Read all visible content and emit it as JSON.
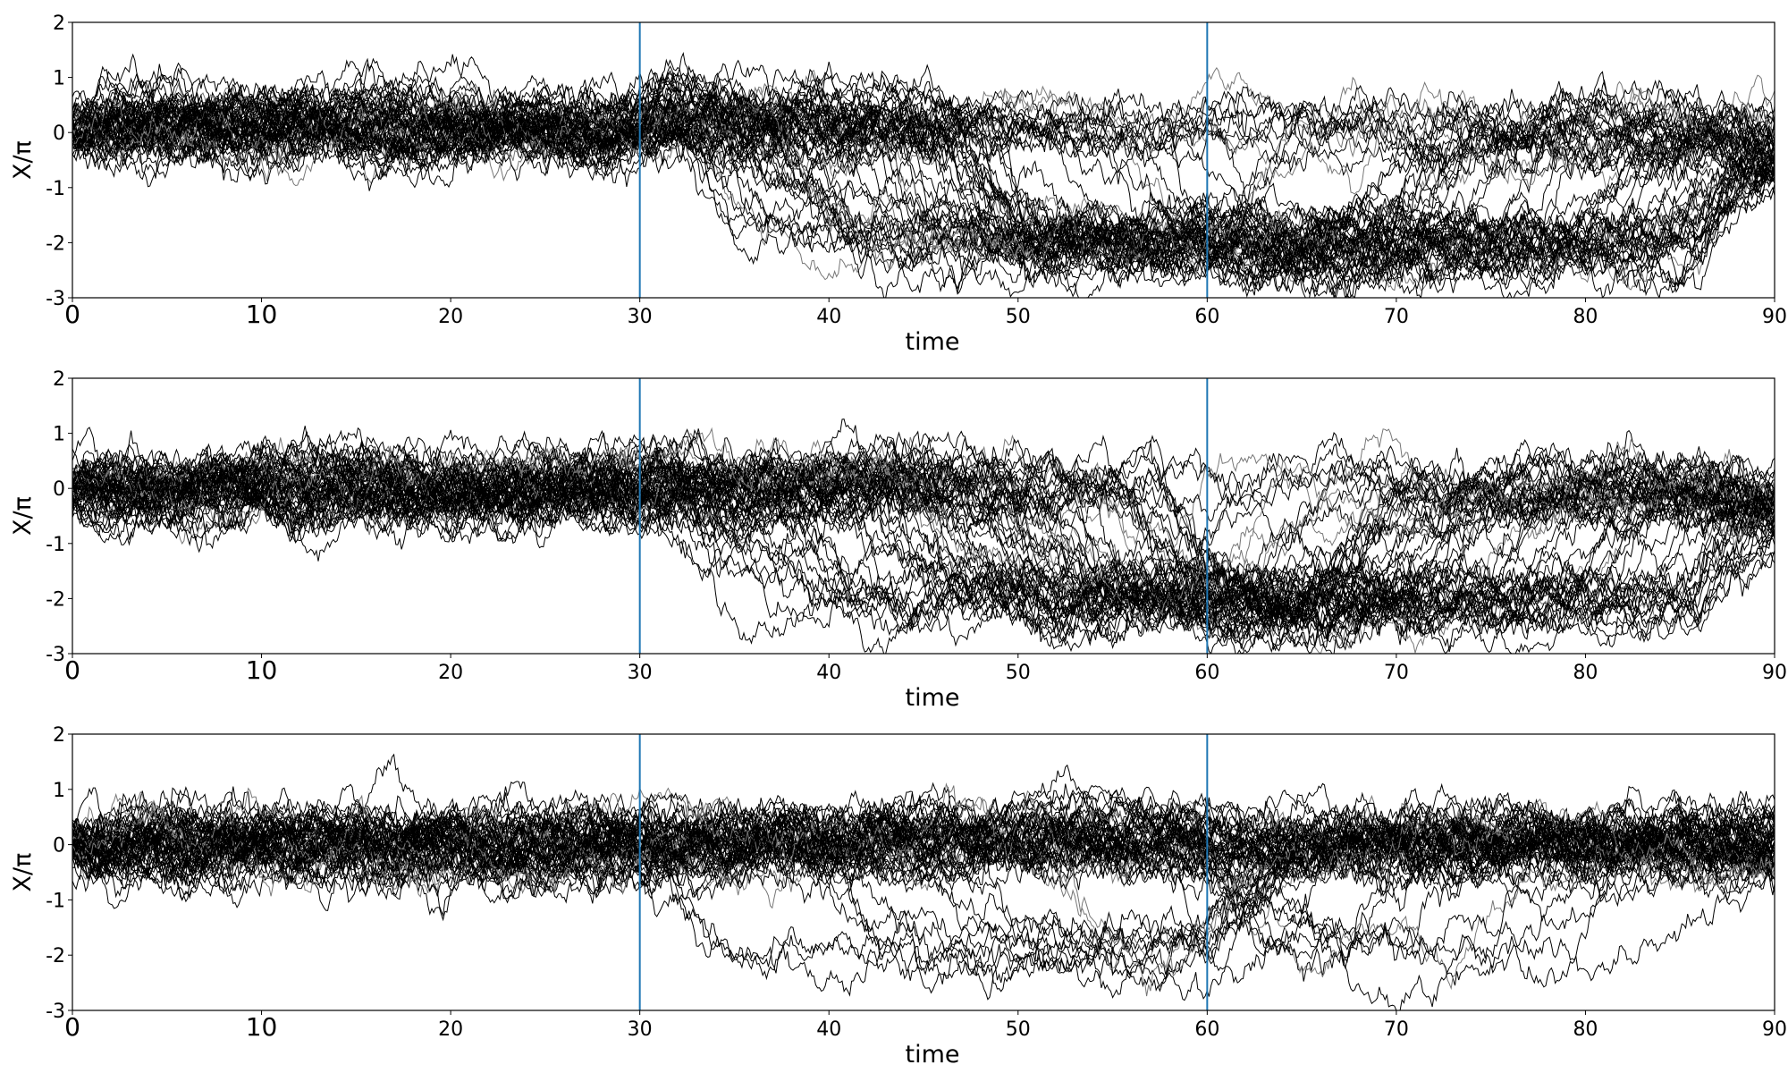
{
  "chart_data": [
    {
      "type": "line",
      "panel": "top",
      "xlabel": "time",
      "ylabel": "X/π",
      "xlim": [
        0,
        90
      ],
      "ylim": [
        -3,
        2
      ],
      "xticks": [
        "0",
        "10",
        "20",
        "30",
        "40",
        "50",
        "60",
        "70",
        "80",
        "90"
      ],
      "yticks": [
        "2",
        "1",
        "0",
        "-1",
        "-2",
        "-3"
      ],
      "grid": false,
      "legend": "none",
      "vlines": [
        30,
        60
      ],
      "vline_color": "#1f77b4",
      "line_color": "#000000",
      "trajectories": 60,
      "regimes": [
        {
          "t0": 0,
          "t1": 30,
          "center": 0.1,
          "spread": 0.25
        },
        {
          "t0": 30,
          "t1": 60,
          "from": 0.4,
          "to": -2.0,
          "note_levels": [
            0.3,
            -2.0
          ]
        },
        {
          "t0": 60,
          "t1": 90,
          "from": -2.0,
          "to": -0.3,
          "note_levels": [
            -2.0,
            0.0
          ]
        }
      ]
    },
    {
      "type": "line",
      "panel": "middle",
      "xlabel": "time",
      "ylabel": "X/π",
      "xlim": [
        0,
        90
      ],
      "ylim": [
        -3,
        2
      ],
      "xticks": [
        "0",
        "10",
        "20",
        "30",
        "40",
        "50",
        "60",
        "70",
        "80",
        "90"
      ],
      "yticks": [
        "2",
        "1",
        "0",
        "-1",
        "-2",
        "-3"
      ],
      "grid": false,
      "legend": "none",
      "vlines": [
        30,
        60
      ],
      "vline_color": "#1f77b4",
      "line_color": "#000000",
      "trajectories": 60,
      "regimes": [
        {
          "t0": 0,
          "t1": 30,
          "center": 0.0,
          "spread": 0.3
        },
        {
          "t0": 30,
          "t1": 60,
          "from": 0.2,
          "to": -1.9,
          "note_levels": [
            0.1,
            -2.0
          ]
        },
        {
          "t0": 60,
          "t1": 90,
          "from": -1.9,
          "to": -0.3,
          "note_levels": [
            -2.0,
            0.0
          ]
        }
      ]
    },
    {
      "type": "line",
      "panel": "bottom",
      "xlabel": "time",
      "ylabel": "X/π",
      "xlim": [
        0,
        90
      ],
      "ylim": [
        -3,
        2
      ],
      "xticks": [
        "0",
        "10",
        "20",
        "30",
        "40",
        "50",
        "60",
        "70",
        "80",
        "90"
      ],
      "yticks": [
        "2",
        "1",
        "0",
        "-1",
        "-2",
        "-3"
      ],
      "grid": false,
      "legend": "none",
      "vlines": [
        30,
        60
      ],
      "vline_color": "#1f77b4",
      "line_color": "#000000",
      "trajectories": 60,
      "regimes": [
        {
          "t0": 0,
          "t1": 30,
          "center": 0.0,
          "spread": 0.3
        },
        {
          "t0": 30,
          "t1": 60,
          "from": 0.0,
          "to": 0.0,
          "note_levels": [
            0.0,
            -2.0
          ]
        },
        {
          "t0": 60,
          "t1": 90,
          "from": 0.0,
          "to": -0.1,
          "note_levels": [
            0.0,
            -2.0
          ]
        }
      ]
    }
  ]
}
